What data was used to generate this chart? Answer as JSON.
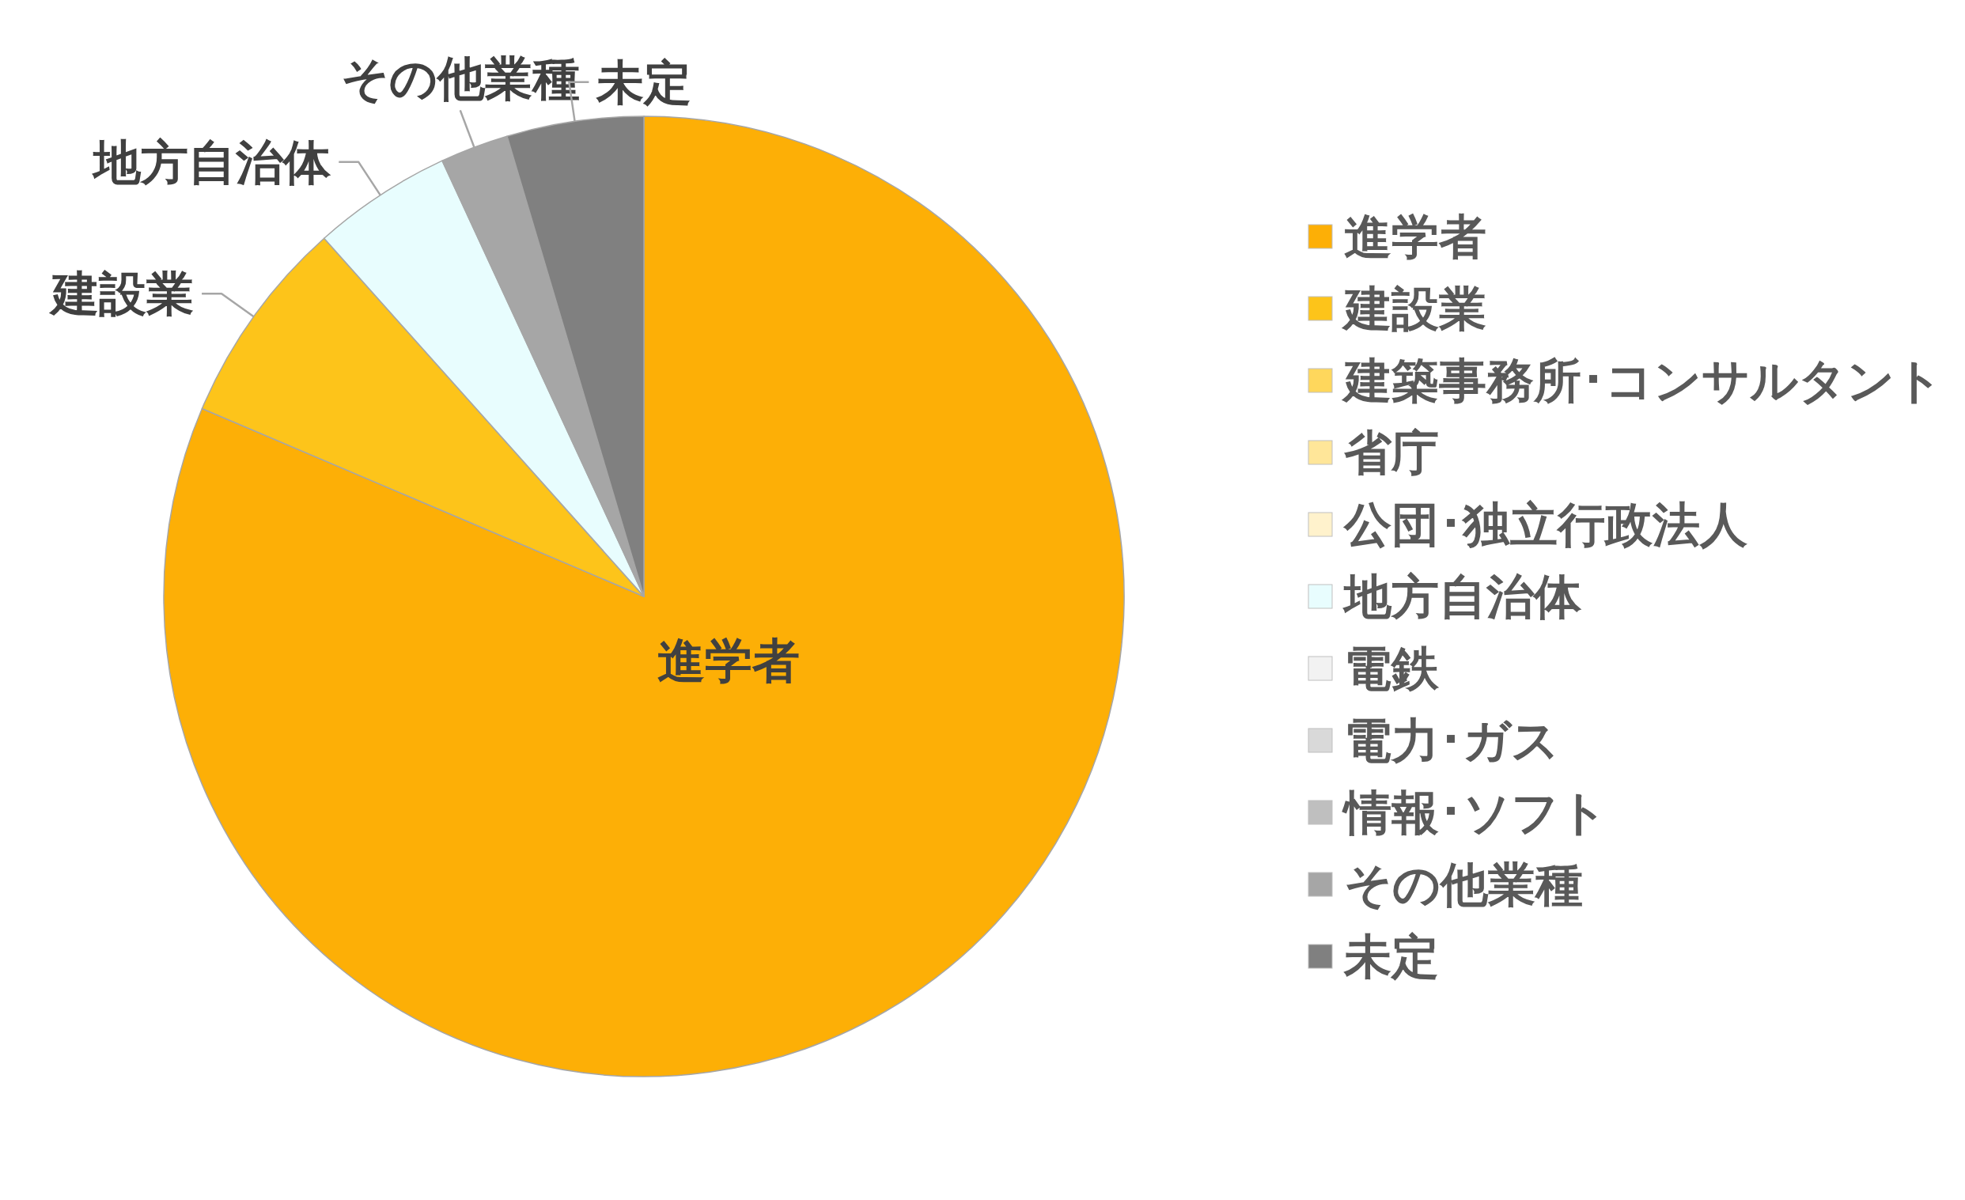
{
  "chart_data": {
    "type": "pie",
    "categories": [
      "進学者",
      "建設業",
      "建築事務所･コンサルタント",
      "省庁",
      "公団･独立行政法人",
      "地方自治体",
      "電鉄",
      "電力･ガス",
      "情報･ソフト",
      "その他業種",
      "未定"
    ],
    "values": [
      81.4,
      7.0,
      0,
      0,
      0,
      4.7,
      0,
      0,
      0,
      2.3,
      4.6
    ],
    "colors": [
      "#fdaf06",
      "#fdc41a",
      "#ffd75c",
      "#ffe699",
      "#fff2cc",
      "#e8fdfe",
      "#f2f2f2",
      "#d9d9d9",
      "#bfbfbf",
      "#a6a6a6",
      "#808080"
    ],
    "legend": "right"
  }
}
